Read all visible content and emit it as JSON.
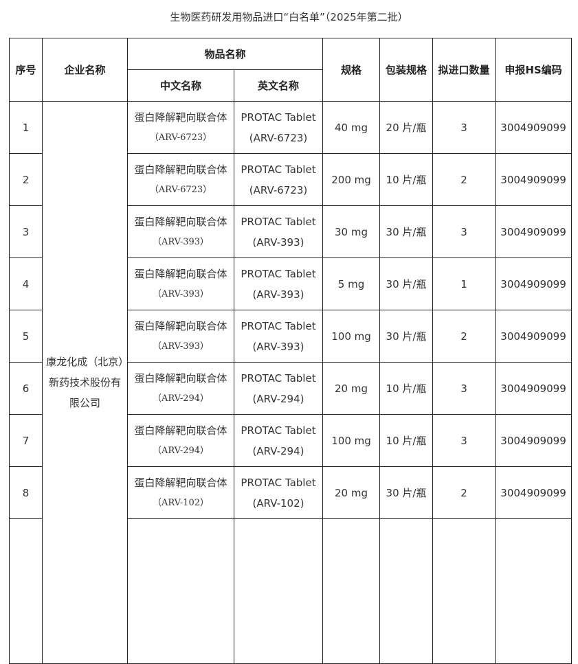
{
  "title": "生物医药研发用物品进口“白名单”（2025年第二批）",
  "headers": {
    "index": "序号",
    "company": "企业名称",
    "item_name": "物品名称",
    "cn_name": "中文名称",
    "en_name": "英文名称",
    "spec": "规格",
    "package": "包装规格",
    "quantity": "拟进口数量",
    "hs_code": "申报HS编码"
  },
  "company": "康龙化成（北京）新药技术股份有限公司",
  "rows": [
    {
      "index": "1",
      "cn": "蛋白降解靶向联合体",
      "cn_code": "（ARV-6723）",
      "en": "PROTAC Tablet",
      "en_code": "(ARV-6723)",
      "spec": "40 mg",
      "package": "20 片/瓶",
      "quantity": "3",
      "hs": "3004909099"
    },
    {
      "index": "2",
      "cn": "蛋白降解靶向联合体",
      "cn_code": "（ARV-6723）",
      "en": "PROTAC Tablet",
      "en_code": "(ARV-6723)",
      "spec": "200 mg",
      "package": "10 片/瓶",
      "quantity": "2",
      "hs": "3004909099"
    },
    {
      "index": "3",
      "cn": "蛋白降解靶向联合体",
      "cn_code": "（ARV-393）",
      "en": "PROTAC Tablet",
      "en_code": "(ARV-393)",
      "spec": "30 mg",
      "package": "30 片/瓶",
      "quantity": "3",
      "hs": "3004909099"
    },
    {
      "index": "4",
      "cn": "蛋白降解靶向联合体",
      "cn_code": "（ARV-393）",
      "en": "PROTAC Tablet",
      "en_code": "(ARV-393)",
      "spec": "5 mg",
      "package": "30 片/瓶",
      "quantity": "1",
      "hs": "3004909099"
    },
    {
      "index": "5",
      "cn": "蛋白降解靶向联合体",
      "cn_code": "（ARV-393）",
      "en": "PROTAC Tablet",
      "en_code": "(ARV-393)",
      "spec": "100 mg",
      "package": "30 片/瓶",
      "quantity": "2",
      "hs": "3004909099"
    },
    {
      "index": "6",
      "cn": "蛋白降解靶向联合体",
      "cn_code": "（ARV-294）",
      "en": "PROTAC Tablet",
      "en_code": "(ARV-294)",
      "spec": "20 mg",
      "package": "10 片/瓶",
      "quantity": "3",
      "hs": "3004909099"
    },
    {
      "index": "7",
      "cn": "蛋白降解靶向联合体",
      "cn_code": "（ARV-294）",
      "en": "PROTAC Tablet",
      "en_code": "(ARV-294)",
      "spec": "100 mg",
      "package": "10 片/瓶",
      "quantity": "3",
      "hs": "3004909099"
    },
    {
      "index": "8",
      "cn": "蛋白降解靶向联合体",
      "cn_code": "（ARV-102）",
      "en": "PROTAC Tablet",
      "en_code": "(ARV-102)",
      "spec": "20 mg",
      "package": "30 片/瓶",
      "quantity": "2",
      "hs": "3004909099"
    }
  ]
}
